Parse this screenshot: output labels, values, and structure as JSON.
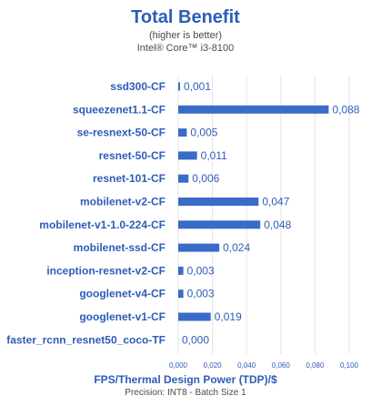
{
  "header": {
    "title": "Total Benefit",
    "subtitle": "(higher is better)",
    "processor": "Intel® Core™ i3-8100"
  },
  "footer": {
    "xlabel": "FPS/Thermal Design Power (TDP)/$",
    "precision": "Precision: INT8 - Batch Size 1"
  },
  "colors": {
    "bar": "#3a6bc9",
    "text": "#2e5cb8",
    "grid": "#e4e4e4"
  },
  "chart_data": {
    "type": "bar",
    "orientation": "horizontal",
    "categories": [
      "ssd300-CF",
      "squeezenet1.1-CF",
      "se-resnext-50-CF",
      "resnet-50-CF",
      "resnet-101-CF",
      "mobilenet-v2-CF",
      "mobilenet-v1-1.0-224-CF",
      "mobilenet-ssd-CF",
      "inception-resnet-v2-CF",
      "googlenet-v4-CF",
      "googlenet-v1-CF",
      "faster_rcnn_resnet50_coco-TF"
    ],
    "values": [
      0.001,
      0.088,
      0.005,
      0.011,
      0.006,
      0.047,
      0.048,
      0.024,
      0.003,
      0.003,
      0.019,
      0.0
    ],
    "value_labels": [
      "0,001",
      "0,088",
      "0,005",
      "0,011",
      "0,006",
      "0,047",
      "0,048",
      "0,024",
      "0,003",
      "0,003",
      "0,019",
      "0,000"
    ],
    "xlim": [
      0,
      0.1
    ],
    "xticks": [
      0,
      0.02,
      0.04,
      0.06,
      0.08,
      0.1
    ],
    "xtick_labels": [
      "0,000",
      "0,020",
      "0,040",
      "0,060",
      "0,080",
      "0,100"
    ],
    "grid": true,
    "legend": "none"
  }
}
